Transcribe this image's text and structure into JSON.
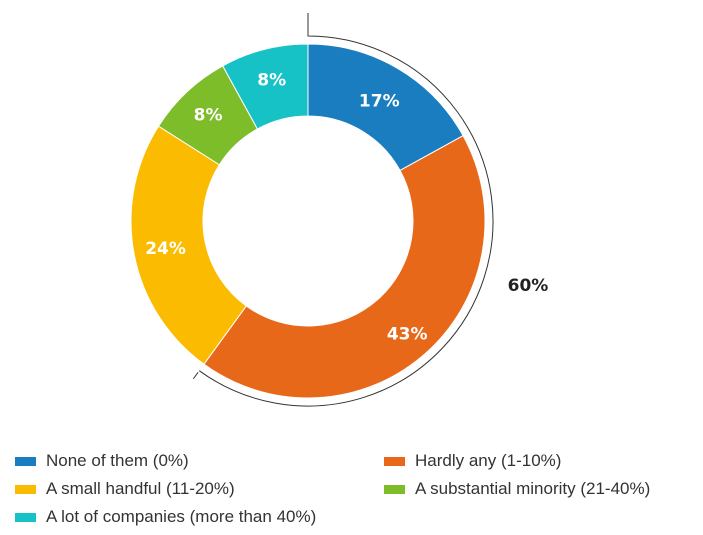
{
  "chart_data": {
    "type": "pie",
    "categories": [
      "None of them (0%)",
      "Hardly any (1-10%)",
      "A small handful (11-20%)",
      "A substantial minority (21-40%)",
      "A lot of companies (more than 40%)"
    ],
    "values": [
      17,
      43,
      24,
      8,
      8
    ],
    "value_labels": [
      "17%",
      "43%",
      "24%",
      "8%",
      "8%"
    ],
    "colors": [
      "#1a7dbf",
      "#e8681a",
      "#fbbb00",
      "#7dbd2a",
      "#17c2c6"
    ],
    "donut": true,
    "bracket_label": "60%",
    "legend": {
      "position": "bottom"
    }
  }
}
